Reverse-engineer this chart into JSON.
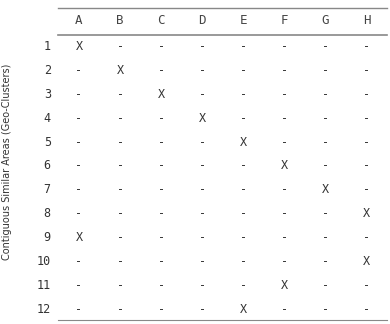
{
  "col_headers": [
    "A",
    "B",
    "C",
    "D",
    "E",
    "F",
    "G",
    "H"
  ],
  "row_headers": [
    "1",
    "2",
    "3",
    "4",
    "5",
    "6",
    "7",
    "8",
    "9",
    "10",
    "11",
    "12"
  ],
  "table_data": [
    [
      "X",
      "-",
      "-",
      "-",
      "-",
      "-",
      "-",
      "-"
    ],
    [
      "-",
      "X",
      "-",
      "-",
      "-",
      "-",
      "-",
      "-"
    ],
    [
      "-",
      "-",
      "X",
      "-",
      "-",
      "-",
      "-",
      "-"
    ],
    [
      "-",
      "-",
      "-",
      "X",
      "-",
      "-",
      "-",
      "-"
    ],
    [
      "-",
      "-",
      "-",
      "-",
      "X",
      "-",
      "-",
      "-"
    ],
    [
      "-",
      "-",
      "-",
      "-",
      "-",
      "X",
      "-",
      "-"
    ],
    [
      "-",
      "-",
      "-",
      "-",
      "-",
      "-",
      "X",
      "-"
    ],
    [
      "-",
      "-",
      "-",
      "-",
      "-",
      "-",
      "-",
      "X"
    ],
    [
      "X",
      "-",
      "-",
      "-",
      "-",
      "-",
      "-",
      "-"
    ],
    [
      "-",
      "-",
      "-",
      "-",
      "-",
      "-",
      "-",
      "X"
    ],
    [
      "-",
      "-",
      "-",
      "-",
      "-",
      "X",
      "-",
      "-"
    ],
    [
      "-",
      "-",
      "-",
      "-",
      "X",
      "-",
      "-",
      "-"
    ]
  ],
  "y_axis_label": "Contiguous Similar Areas (Geo-Clusters)",
  "background_color": "#ffffff",
  "line_color": "#888888",
  "text_color": "#333333",
  "header_color": "#444444",
  "font_size_header": 9,
  "font_size_body": 8.5,
  "font_size_ylabel": 7
}
